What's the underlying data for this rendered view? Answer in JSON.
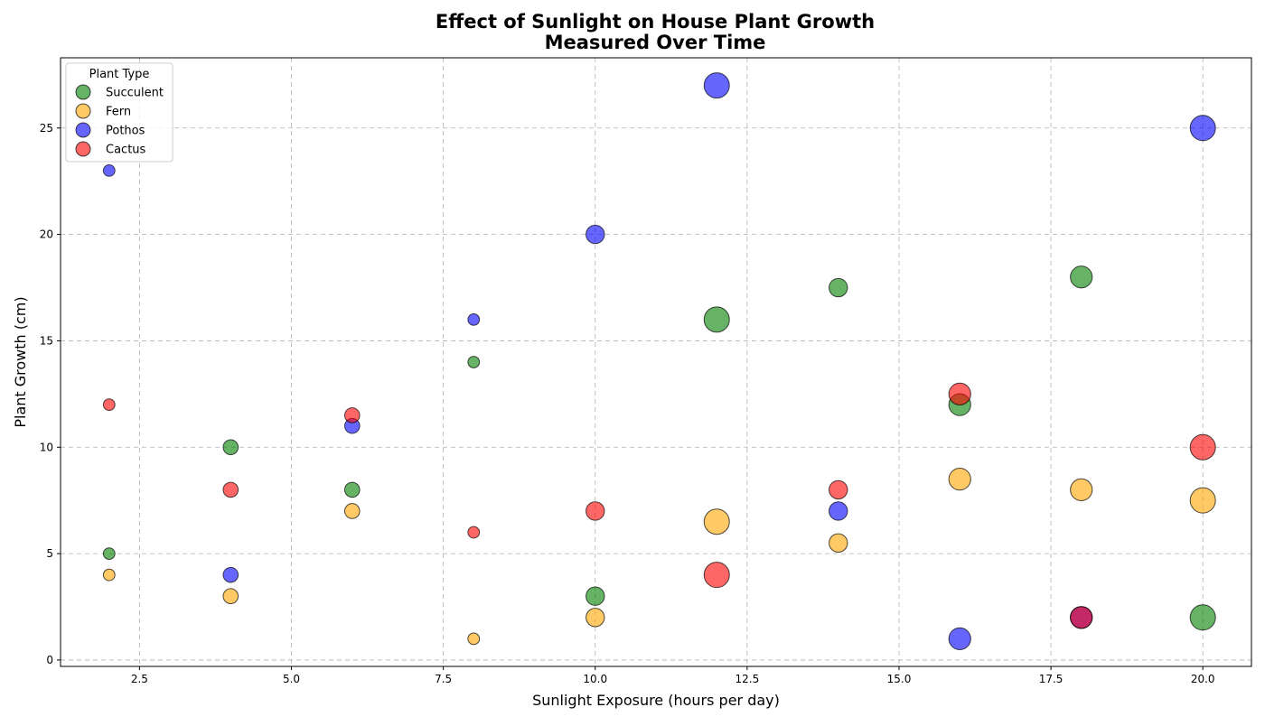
{
  "chart_data": {
    "type": "scatter",
    "title": [
      "Effect of Sunlight on House Plant Growth",
      "Measured Over Time"
    ],
    "xlabel": "Sunlight Exposure (hours per day)",
    "ylabel": "Plant Growth (cm)",
    "xlim": [
      1.2,
      20.8
    ],
    "ylim": [
      -0.3,
      28.3
    ],
    "xticks": [
      2.5,
      5.0,
      7.5,
      10.0,
      12.5,
      15.0,
      17.5,
      20.0
    ],
    "xtick_labels": [
      "2.5",
      "5.0",
      "7.5",
      "10.0",
      "12.5",
      "15.0",
      "17.5",
      "20.0"
    ],
    "yticks": [
      0,
      5,
      10,
      15,
      20,
      25
    ],
    "ytick_labels": [
      "0",
      "5",
      "10",
      "15",
      "20",
      "25"
    ],
    "grid": true,
    "legend": {
      "title": "Plant Type",
      "position": "top-left"
    },
    "series": [
      {
        "name": "Succulent",
        "color": "#008000",
        "points": [
          {
            "x": 2,
            "y": 5,
            "size": 1
          },
          {
            "x": 4,
            "y": 10,
            "size": 2
          },
          {
            "x": 6,
            "y": 8,
            "size": 2
          },
          {
            "x": 8,
            "y": 14,
            "size": 1
          },
          {
            "x": 10,
            "y": 3,
            "size": 3
          },
          {
            "x": 12,
            "y": 16,
            "size": 5
          },
          {
            "x": 14,
            "y": 17.5,
            "size": 3
          },
          {
            "x": 16,
            "y": 12,
            "size": 4
          },
          {
            "x": 18,
            "y": 18,
            "size": 4
          },
          {
            "x": 20,
            "y": 2,
            "size": 5
          }
        ]
      },
      {
        "name": "Fern",
        "color": "#FFA500",
        "points": [
          {
            "x": 2,
            "y": 4,
            "size": 1
          },
          {
            "x": 4,
            "y": 3,
            "size": 2
          },
          {
            "x": 6,
            "y": 7,
            "size": 2
          },
          {
            "x": 8,
            "y": 1,
            "size": 1
          },
          {
            "x": 10,
            "y": 2,
            "size": 3
          },
          {
            "x": 12,
            "y": 6.5,
            "size": 5
          },
          {
            "x": 14,
            "y": 5.5,
            "size": 3
          },
          {
            "x": 16,
            "y": 8.5,
            "size": 4
          },
          {
            "x": 18,
            "y": 8,
            "size": 4
          },
          {
            "x": 20,
            "y": 7.5,
            "size": 5
          }
        ]
      },
      {
        "name": "Pothos",
        "color": "#0000FF",
        "points": [
          {
            "x": 2,
            "y": 23,
            "size": 1
          },
          {
            "x": 4,
            "y": 4,
            "size": 2
          },
          {
            "x": 6,
            "y": 11,
            "size": 2
          },
          {
            "x": 8,
            "y": 16,
            "size": 1
          },
          {
            "x": 10,
            "y": 20,
            "size": 3
          },
          {
            "x": 12,
            "y": 27,
            "size": 5
          },
          {
            "x": 14,
            "y": 7,
            "size": 3
          },
          {
            "x": 16,
            "y": 1,
            "size": 4
          },
          {
            "x": 18,
            "y": 2,
            "size": 4
          },
          {
            "x": 20,
            "y": 25,
            "size": 5
          }
        ]
      },
      {
        "name": "Cactus",
        "color": "#FF0000",
        "points": [
          {
            "x": 2,
            "y": 12,
            "size": 1
          },
          {
            "x": 4,
            "y": 8,
            "size": 2
          },
          {
            "x": 6,
            "y": 11.5,
            "size": 2
          },
          {
            "x": 8,
            "y": 6,
            "size": 1
          },
          {
            "x": 10,
            "y": 7,
            "size": 3
          },
          {
            "x": 12,
            "y": 4,
            "size": 5
          },
          {
            "x": 14,
            "y": 8,
            "size": 3
          },
          {
            "x": 16,
            "y": 12.5,
            "size": 4
          },
          {
            "x": 18,
            "y": 2,
            "size": 4
          },
          {
            "x": 20,
            "y": 10,
            "size": 5
          }
        ]
      }
    ]
  }
}
